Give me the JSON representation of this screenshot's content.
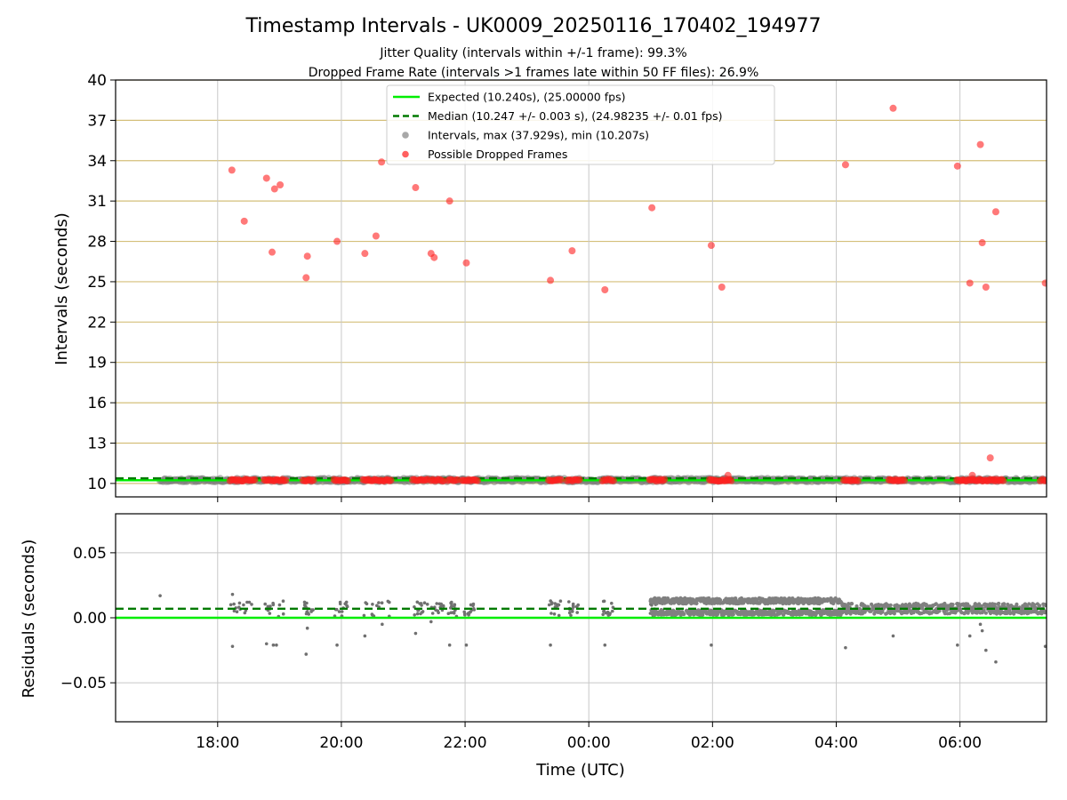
{
  "chart_data": {
    "type": "scatter",
    "title": "Timestamp Intervals - UK0009_20250116_170402_194977",
    "subtitle_lines": [
      "Jitter Quality (intervals within +/-1 frame): 99.3%",
      "Dropped Frame Rate (intervals >1 frames late within 50 FF files): 26.9%"
    ],
    "xlabel": "Time (UTC)",
    "x_tick_labels": [
      "18:00",
      "20:00",
      "22:00",
      "00:00",
      "02:00",
      "04:00",
      "06:00"
    ],
    "x_ticks_hours": [
      18,
      20,
      22,
      24,
      26,
      28,
      30
    ],
    "xlim_hours": [
      16.35,
      31.4
    ],
    "colors": {
      "expected": "#00ee00",
      "median": "#007a00",
      "intervals": "#808080",
      "dropped": "#ff2020",
      "hgrid": "#d4bf7a",
      "vgrid": "#c8c8c8"
    },
    "top": {
      "ylabel": "Intervals (seconds)",
      "ylim": [
        9.0,
        40.0
      ],
      "y_ticks": [
        10,
        13,
        16,
        19,
        22,
        25,
        28,
        31,
        34,
        37,
        40
      ],
      "y_tick_labels": [
        "10",
        "13",
        "16",
        "19",
        "22",
        "25",
        "28",
        "31",
        "34",
        "37",
        "40"
      ],
      "expected": 10.24,
      "median": 10.247,
      "intervals_range_hours": [
        17.07,
        31.4
      ],
      "legend": [
        {
          "label": "Expected (10.240s), (25.00000 fps)",
          "style": "solid-line",
          "color": "#00ee00"
        },
        {
          "label": "Median (10.247 +/- 0.003 s), (24.98235 +/- 0.01 fps)",
          "style": "dashed-line",
          "color": "#007a00"
        },
        {
          "label": "Intervals, max (37.929s), min (10.207s)",
          "style": "dot",
          "color": "#a8a8a8"
        },
        {
          "label": "Possible Dropped Frames",
          "style": "dot",
          "color": "#ff6060"
        }
      ],
      "dropped_frames": [
        {
          "x": 18.23,
          "y": 33.3
        },
        {
          "x": 18.43,
          "y": 29.5
        },
        {
          "x": 18.79,
          "y": 32.7
        },
        {
          "x": 18.88,
          "y": 27.2
        },
        {
          "x": 18.92,
          "y": 31.9
        },
        {
          "x": 19.01,
          "y": 32.2
        },
        {
          "x": 19.43,
          "y": 25.3
        },
        {
          "x": 19.45,
          "y": 26.9
        },
        {
          "x": 19.93,
          "y": 28.0
        },
        {
          "x": 20.38,
          "y": 27.1
        },
        {
          "x": 20.56,
          "y": 28.4
        },
        {
          "x": 20.65,
          "y": 33.9
        },
        {
          "x": 21.2,
          "y": 32.0
        },
        {
          "x": 21.45,
          "y": 27.1
        },
        {
          "x": 21.5,
          "y": 26.8
        },
        {
          "x": 21.75,
          "y": 31.0
        },
        {
          "x": 22.02,
          "y": 26.4
        },
        {
          "x": 23.38,
          "y": 25.1
        },
        {
          "x": 23.73,
          "y": 27.3
        },
        {
          "x": 24.26,
          "y": 24.4
        },
        {
          "x": 25.02,
          "y": 30.5
        },
        {
          "x": 25.98,
          "y": 27.7
        },
        {
          "x": 26.15,
          "y": 24.6
        },
        {
          "x": 26.25,
          "y": 10.6
        },
        {
          "x": 28.15,
          "y": 33.7
        },
        {
          "x": 28.92,
          "y": 37.9
        },
        {
          "x": 29.96,
          "y": 33.6
        },
        {
          "x": 30.16,
          "y": 24.9
        },
        {
          "x": 30.2,
          "y": 10.6
        },
        {
          "x": 30.33,
          "y": 35.2
        },
        {
          "x": 30.36,
          "y": 27.9
        },
        {
          "x": 30.42,
          "y": 24.6
        },
        {
          "x": 30.49,
          "y": 11.9
        },
        {
          "x": 30.58,
          "y": 30.2
        },
        {
          "x": 31.38,
          "y": 24.9
        }
      ],
      "dropped_clusters_at_10": [
        [
          18.2,
          18.6
        ],
        [
          18.75,
          19.1
        ],
        [
          19.38,
          19.55
        ],
        [
          19.88,
          20.1
        ],
        [
          20.35,
          20.8
        ],
        [
          21.15,
          21.4
        ],
        [
          21.45,
          21.65
        ],
        [
          21.72,
          21.88
        ],
        [
          21.95,
          22.2
        ],
        [
          23.35,
          23.55
        ],
        [
          23.65,
          23.85
        ],
        [
          24.22,
          24.4
        ],
        [
          24.98,
          25.22
        ],
        [
          25.95,
          26.3
        ],
        [
          28.12,
          28.35
        ],
        [
          28.85,
          29.1
        ],
        [
          29.95,
          30.7
        ],
        [
          31.3,
          31.4
        ]
      ]
    },
    "bottom": {
      "ylabel": "Residuals (seconds)",
      "ylim": [
        -0.08,
        0.08
      ],
      "y_ticks": [
        0.05,
        0.0,
        -0.05
      ],
      "y_tick_labels": [
        "0.05",
        "0.00",
        "−0.05"
      ],
      "expected_residual": 0.0,
      "median_residual": 0.007,
      "outliers": [
        {
          "x": 17.07,
          "y": 0.017
        },
        {
          "x": 18.24,
          "y": 0.018
        },
        {
          "x": 18.24,
          "y": -0.022
        },
        {
          "x": 18.79,
          "y": -0.02
        },
        {
          "x": 18.9,
          "y": -0.021
        },
        {
          "x": 18.95,
          "y": -0.021
        },
        {
          "x": 19.43,
          "y": -0.028
        },
        {
          "x": 19.45,
          "y": -0.008
        },
        {
          "x": 19.93,
          "y": -0.021
        },
        {
          "x": 20.38,
          "y": -0.014
        },
        {
          "x": 20.66,
          "y": -0.005
        },
        {
          "x": 21.2,
          "y": -0.012
        },
        {
          "x": 21.45,
          "y": -0.003
        },
        {
          "x": 21.75,
          "y": -0.021
        },
        {
          "x": 22.02,
          "y": -0.021
        },
        {
          "x": 23.38,
          "y": -0.021
        },
        {
          "x": 24.26,
          "y": -0.021
        },
        {
          "x": 25.98,
          "y": -0.021
        },
        {
          "x": 28.15,
          "y": -0.023
        },
        {
          "x": 28.92,
          "y": -0.014
        },
        {
          "x": 29.96,
          "y": -0.021
        },
        {
          "x": 30.16,
          "y": -0.014
        },
        {
          "x": 30.33,
          "y": -0.005
        },
        {
          "x": 30.36,
          "y": -0.01
        },
        {
          "x": 30.42,
          "y": -0.025
        },
        {
          "x": 30.58,
          "y": -0.034
        },
        {
          "x": 31.38,
          "y": -0.022
        }
      ]
    }
  }
}
